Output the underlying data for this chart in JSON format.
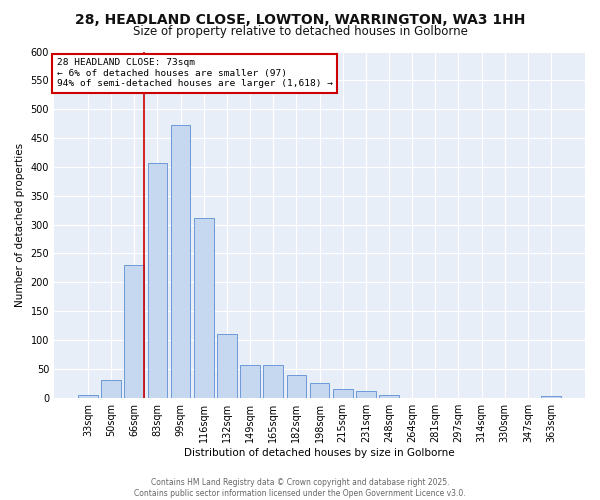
{
  "title": "28, HEADLAND CLOSE, LOWTON, WARRINGTON, WA3 1HH",
  "subtitle": "Size of property relative to detached houses in Golborne",
  "xlabel": "Distribution of detached houses by size in Golborne",
  "ylabel": "Number of detached properties",
  "categories": [
    "33sqm",
    "50sqm",
    "66sqm",
    "83sqm",
    "99sqm",
    "116sqm",
    "132sqm",
    "149sqm",
    "165sqm",
    "182sqm",
    "198sqm",
    "215sqm",
    "231sqm",
    "248sqm",
    "264sqm",
    "281sqm",
    "297sqm",
    "314sqm",
    "330sqm",
    "347sqm",
    "363sqm"
  ],
  "values": [
    5,
    30,
    230,
    407,
    473,
    312,
    111,
    57,
    57,
    40,
    25,
    15,
    11,
    5,
    0,
    0,
    0,
    0,
    0,
    0,
    3
  ],
  "bar_color": "#c5d8f0",
  "bar_edge_color": "#5b8fd4",
  "red_line_x": 2,
  "annotation_title": "28 HEADLAND CLOSE: 73sqm",
  "annotation_line1": "← 6% of detached houses are smaller (97)",
  "annotation_line2": "94% of semi-detached houses are larger (1,618) →",
  "footer_line1": "Contains HM Land Registry data © Crown copyright and database right 2025.",
  "footer_line2": "Contains public sector information licensed under the Open Government Licence v3.0.",
  "ylim": [
    0,
    600
  ],
  "yticks": [
    0,
    50,
    100,
    150,
    200,
    250,
    300,
    350,
    400,
    450,
    500,
    550,
    600
  ],
  "bg_color": "#e8eef8",
  "grid_color": "#ffffff",
  "title_fontsize": 10,
  "subtitle_fontsize": 8.5,
  "annotation_box_color": "#ffffff",
  "annotation_box_edge": "#cc0000",
  "red_line_color": "#cc0000",
  "footer_color": "#666666"
}
